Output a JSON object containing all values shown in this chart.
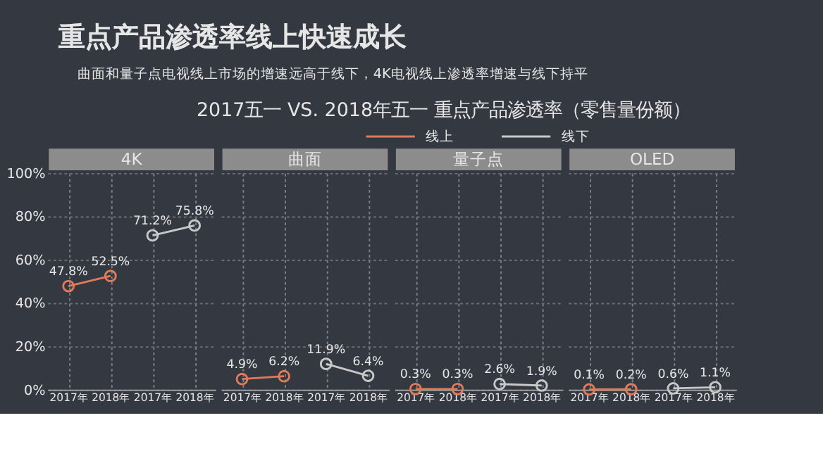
{
  "chart_data": [
    {
      "type": "line",
      "title": "4K",
      "annotations": [
        "重点产品渗透率线上快速成长",
        "曲面和量子点电视线上市场的增速远高于线下，4K电视线上渗透率增速与线下持平",
        "2017五一 VS. 2018年五一 重点产品渗透率（零售量份额）"
      ],
      "categories": [
        "2017年",
        "2018年",
        "2017年",
        "2018年"
      ],
      "series": [
        {
          "name": "线上",
          "color": "#e07b5a",
          "values": [
            47.8,
            52.5,
            null,
            null
          ],
          "value_labels": [
            "47.8%",
            "52.5%",
            null,
            null
          ]
        },
        {
          "name": "线下",
          "color": "#c8c8c8",
          "values": [
            null,
            null,
            71.2,
            75.8
          ],
          "value_labels": [
            null,
            null,
            "71.2%",
            "75.8%"
          ]
        }
      ],
      "ylim": [
        0,
        100
      ],
      "yticks": [
        {
          "value": 0,
          "label": "0%"
        },
        {
          "value": 20,
          "label": "20%"
        },
        {
          "value": 40,
          "label": "40%"
        },
        {
          "value": 60,
          "label": "60%"
        },
        {
          "value": 80,
          "label": "80%"
        },
        {
          "value": 100,
          "label": "100%"
        }
      ],
      "grid": true,
      "legend": "top",
      "marker": "circle"
    },
    {
      "type": "line",
      "title": "曲面",
      "categories": [
        "2017年",
        "2018年",
        "2017年",
        "2018年"
      ],
      "series": [
        {
          "color": "#e07b5a",
          "values": [
            4.9,
            6.2,
            null,
            null
          ],
          "value_labels": [
            "4.9%",
            "6.2%",
            null,
            null
          ]
        },
        {
          "color": "#c8c8c8",
          "values": [
            null,
            null,
            11.9,
            6.4
          ],
          "value_labels": [
            null,
            null,
            "11.9%",
            "6.4%"
          ]
        }
      ],
      "ylim": [
        0,
        100
      ],
      "yticks": [
        {
          "value": 0,
          "label": null
        },
        {
          "value": 20,
          "label": null
        },
        {
          "value": 40,
          "label": null
        },
        {
          "value": 60,
          "label": null
        },
        {
          "value": 80,
          "label": null
        },
        {
          "value": 100,
          "label": null
        }
      ],
      "grid": true,
      "tick_labels": "x",
      "marker": "circle"
    },
    {
      "type": "line",
      "title": "量子点",
      "categories": [
        "2017年",
        "2018年",
        "2017年",
        "2018年"
      ],
      "series": [
        {
          "color": "#e07b5a",
          "values": [
            0.3,
            0.3,
            null,
            null
          ],
          "value_labels": [
            "0.3%",
            "0.3%",
            null,
            null
          ]
        },
        {
          "color": "#c8c8c8",
          "values": [
            null,
            null,
            2.6,
            1.9
          ],
          "value_labels": [
            null,
            null,
            "2.6%",
            "1.9%"
          ]
        }
      ],
      "ylim": [
        0,
        100
      ],
      "yticks": [
        {
          "value": 0,
          "label": null
        },
        {
          "value": 20,
          "label": null
        },
        {
          "value": 40,
          "label": null
        },
        {
          "value": 60,
          "label": null
        },
        {
          "value": 80,
          "label": null
        },
        {
          "value": 100,
          "label": null
        }
      ],
      "grid": true,
      "tick_labels": "x",
      "marker": "circle"
    },
    {
      "type": "line",
      "title": "OLED",
      "categories": [
        "2017年",
        "2018年",
        "2017年",
        "2018年"
      ],
      "series": [
        {
          "color": "#e07b5a",
          "values": [
            0.1,
            0.2,
            null,
            null
          ],
          "value_labels": [
            "0.1%",
            "0.2%",
            null,
            null
          ]
        },
        {
          "color": "#c8c8c8",
          "values": [
            null,
            null,
            0.6,
            1.1
          ],
          "value_labels": [
            null,
            null,
            "0.6%",
            "1.1%"
          ]
        }
      ],
      "ylim": [
        0,
        100
      ],
      "yticks": [
        {
          "value": 0,
          "label": null
        },
        {
          "value": 20,
          "label": null
        },
        {
          "value": 40,
          "label": null
        },
        {
          "value": 60,
          "label": null
        },
        {
          "value": 80,
          "label": null
        },
        {
          "value": 100,
          "label": null
        }
      ],
      "grid": true,
      "tick_labels": "x",
      "marker": "circle"
    }
  ]
}
